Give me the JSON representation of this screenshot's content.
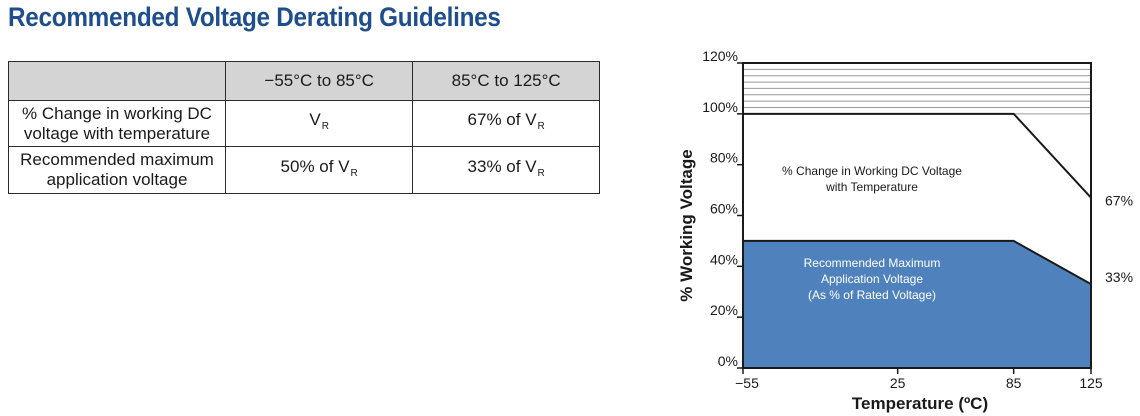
{
  "page": {
    "title": "Recommended Voltage Derating Guidelines"
  },
  "table": {
    "header": [
      "",
      "−55°C to 85°C",
      "85°C to 125°C"
    ],
    "rows": [
      {
        "label_line1": "% Change in working DC",
        "label_line2": "voltage with temperature",
        "cells": [
          {
            "prefix": "",
            "base": "V",
            "sub": "R"
          },
          {
            "prefix": "67% of ",
            "base": "V",
            "sub": "R"
          }
        ]
      },
      {
        "label_line1": "Recommended maximum",
        "label_line2": "application voltage",
        "cells": [
          {
            "prefix": "50% of ",
            "base": "V",
            "sub": "R"
          },
          {
            "prefix": "33% of ",
            "base": "V",
            "sub": "R"
          }
        ]
      }
    ]
  },
  "chart_data": {
    "type": "area",
    "title": "",
    "xlabel": "Temperature (ºC)",
    "ylabel": "% Working Voltage",
    "xlim": [
      -55,
      125
    ],
    "ylim": [
      0,
      120
    ],
    "x_ticks": [
      -55,
      25,
      85,
      125
    ],
    "y_ticks": [
      0,
      20,
      40,
      60,
      80,
      100,
      120
    ],
    "y_tick_suffix": "%",
    "series": [
      {
        "x": [
          -55,
          85,
          125
        ],
        "values": [
          100,
          100,
          67
        ],
        "fill": "#ffffff",
        "text_lines": [
          "% Change in Working DC Voltage",
          "with Temperature"
        ],
        "end_label": "67%"
      },
      {
        "x": [
          -55,
          85,
          125
        ],
        "values": [
          50,
          50,
          33
        ],
        "fill": "#4f81bd",
        "text_lines": [
          "Recommended Maximum",
          "Application Voltage",
          "(As % of Rated Voltage)"
        ],
        "end_label": "33%"
      }
    ],
    "hatch_region": {
      "between": [
        100,
        120
      ],
      "color": "#9a9a9a"
    },
    "grid": false
  }
}
